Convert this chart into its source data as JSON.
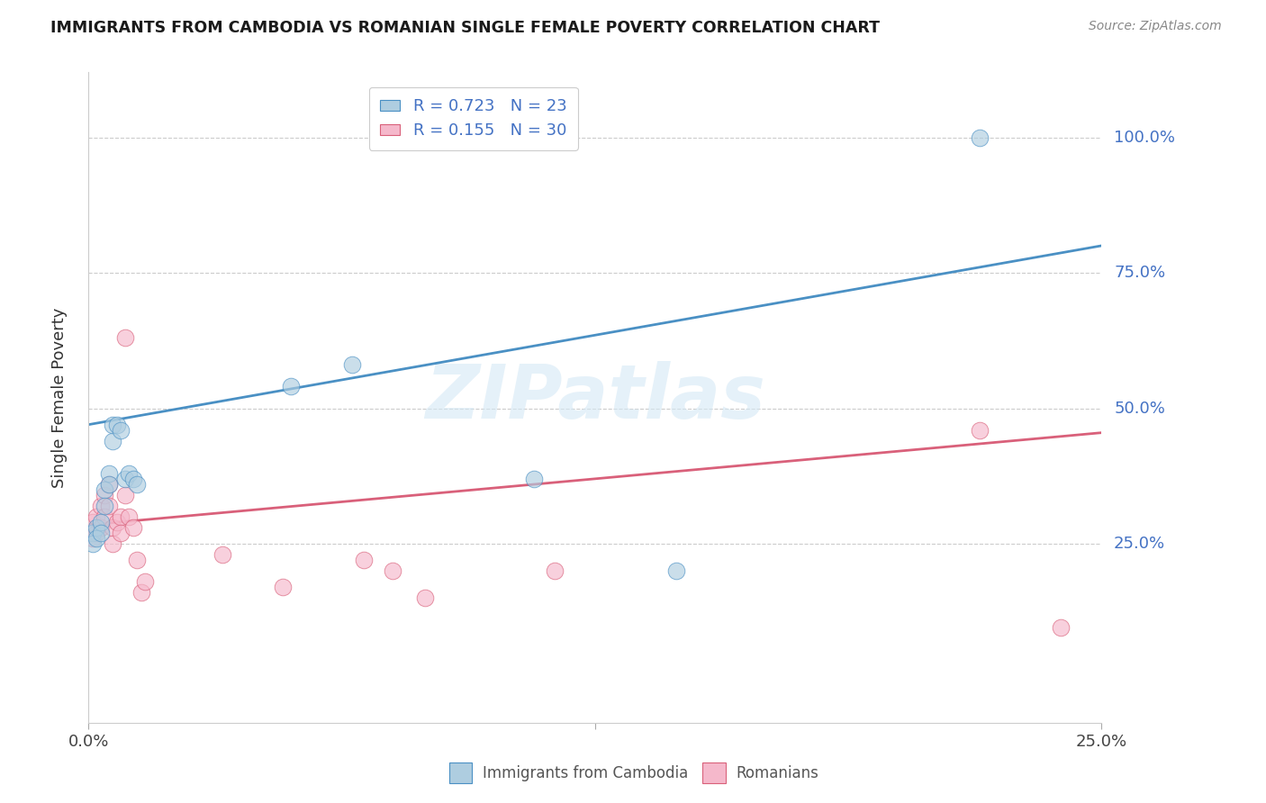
{
  "title": "IMMIGRANTS FROM CAMBODIA VS ROMANIAN SINGLE FEMALE POVERTY CORRELATION CHART",
  "source": "Source: ZipAtlas.com",
  "ylabel": "Single Female Poverty",
  "legend_label1": "Immigrants from Cambodia",
  "legend_label2": "Romanians",
  "legend_R1": "R = 0.723",
  "legend_N1": "N = 23",
  "legend_R2": "R = 0.155",
  "legend_N2": "N = 30",
  "color_blue": "#aecde0",
  "color_pink": "#f5b8cb",
  "line_color_blue": "#4a90c4",
  "line_color_pink": "#d9607a",
  "watermark_color": "#d4e8f5",
  "watermark": "ZIPatlas",
  "xlim": [
    0.0,
    0.25
  ],
  "ylim": [
    -0.08,
    1.12
  ],
  "ytick_values": [
    0.25,
    0.5,
    0.75,
    1.0
  ],
  "ytick_labels": [
    "25.0%",
    "50.0%",
    "75.0%",
    "100.0%"
  ],
  "xtick_values": [
    0.0,
    0.125,
    0.25
  ],
  "xtick_labels": [
    "0.0%",
    "",
    "25.0%"
  ],
  "blue_line_x0": 0.0,
  "blue_line_y0": 0.47,
  "blue_line_x1": 0.25,
  "blue_line_y1": 0.8,
  "pink_line_x0": 0.0,
  "pink_line_y0": 0.285,
  "pink_line_x1": 0.25,
  "pink_line_y1": 0.455,
  "cambodia_x": [
    0.001,
    0.001,
    0.002,
    0.002,
    0.003,
    0.003,
    0.004,
    0.004,
    0.005,
    0.005,
    0.006,
    0.006,
    0.007,
    0.008,
    0.009,
    0.01,
    0.011,
    0.012,
    0.05,
    0.065,
    0.11,
    0.145,
    0.22
  ],
  "cambodia_y": [
    0.27,
    0.25,
    0.28,
    0.26,
    0.29,
    0.27,
    0.35,
    0.32,
    0.38,
    0.36,
    0.44,
    0.47,
    0.47,
    0.46,
    0.37,
    0.38,
    0.37,
    0.36,
    0.54,
    0.58,
    0.37,
    0.2,
    1.0
  ],
  "romanian_x": [
    0.001,
    0.001,
    0.002,
    0.002,
    0.003,
    0.003,
    0.004,
    0.004,
    0.005,
    0.005,
    0.006,
    0.006,
    0.007,
    0.008,
    0.008,
    0.009,
    0.009,
    0.01,
    0.011,
    0.012,
    0.013,
    0.014,
    0.033,
    0.048,
    0.068,
    0.075,
    0.083,
    0.115,
    0.22,
    0.24
  ],
  "romanian_y": [
    0.29,
    0.26,
    0.3,
    0.27,
    0.32,
    0.28,
    0.34,
    0.3,
    0.36,
    0.32,
    0.28,
    0.25,
    0.29,
    0.3,
    0.27,
    0.34,
    0.63,
    0.3,
    0.28,
    0.22,
    0.16,
    0.18,
    0.23,
    0.17,
    0.22,
    0.2,
    0.15,
    0.2,
    0.46,
    0.095
  ]
}
